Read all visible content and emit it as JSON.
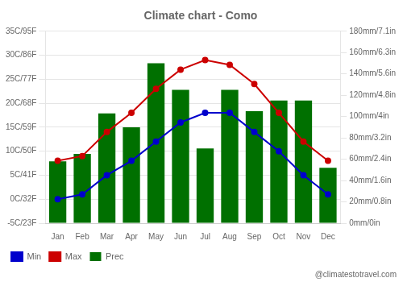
{
  "chart_data": {
    "type": "bar",
    "title": "Climate chart - Como",
    "categories": [
      "Jan",
      "Feb",
      "Mar",
      "Apr",
      "May",
      "Jun",
      "Jul",
      "Aug",
      "Sep",
      "Oct",
      "Nov",
      "Dec"
    ],
    "series": [
      {
        "name": "Prec",
        "type": "bar",
        "color": "#007000",
        "axis": "y2",
        "values": [
          58,
          65,
          103,
          90,
          150,
          125,
          70,
          125,
          105,
          115,
          115,
          52
        ]
      },
      {
        "name": "Min",
        "type": "line",
        "color": "#0000cc",
        "marker": "circle",
        "values": [
          0,
          1,
          5,
          8,
          12,
          16,
          18,
          18,
          14,
          10,
          5,
          1
        ]
      },
      {
        "name": "Max",
        "type": "line",
        "color": "#cc0000",
        "marker": "circle",
        "values": [
          8,
          9,
          14,
          18,
          23,
          27,
          29,
          28,
          24,
          18,
          12,
          8
        ]
      }
    ],
    "ylim": [
      -5,
      35
    ],
    "yticks": [
      {
        "value": -5,
        "label": "-5C/23F"
      },
      {
        "value": 0,
        "label": "0C/32F"
      },
      {
        "value": 5,
        "label": "5C/41F"
      },
      {
        "value": 10,
        "label": "10C/50F"
      },
      {
        "value": 15,
        "label": "15C/59F"
      },
      {
        "value": 20,
        "label": "20C/68F"
      },
      {
        "value": 25,
        "label": "25C/77F"
      },
      {
        "value": 30,
        "label": "30C/86F"
      },
      {
        "value": 35,
        "label": "35C/95F"
      }
    ],
    "y2lim": [
      0,
      180
    ],
    "y2ticks": [
      {
        "value": 0,
        "label": "0mm/0in"
      },
      {
        "value": 20,
        "label": "20mm/0.8in"
      },
      {
        "value": 40,
        "label": "40mm/1.6in"
      },
      {
        "value": 60,
        "label": "60mm/2.4in"
      },
      {
        "value": 80,
        "label": "80mm/3.2in"
      },
      {
        "value": 100,
        "label": "100mm/4in"
      },
      {
        "value": 120,
        "label": "120mm/4.8in"
      },
      {
        "value": 140,
        "label": "140mm/5.6in"
      },
      {
        "value": 160,
        "label": "160mm/6.3in"
      },
      {
        "value": 180,
        "label": "180mm/7.1in"
      }
    ],
    "grid": true,
    "legend": "lower left",
    "annotations": [
      {
        "text": "@climatestotravel.com"
      }
    ]
  }
}
